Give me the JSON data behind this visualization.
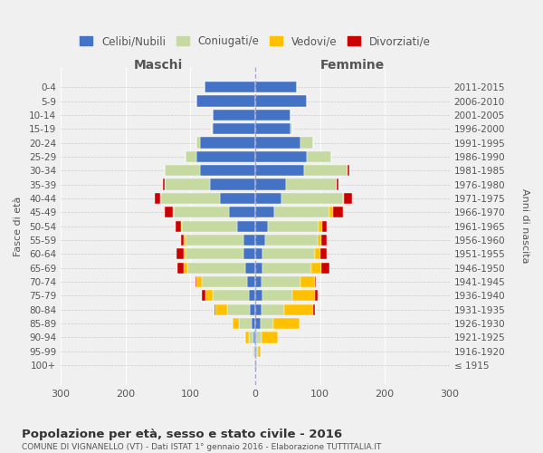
{
  "age_groups": [
    "100+",
    "95-99",
    "90-94",
    "85-89",
    "80-84",
    "75-79",
    "70-74",
    "65-69",
    "60-64",
    "55-59",
    "50-54",
    "45-49",
    "40-44",
    "35-39",
    "30-34",
    "25-29",
    "20-24",
    "15-19",
    "10-14",
    "5-9",
    "0-4"
  ],
  "birth_years": [
    "≤ 1915",
    "1916-1920",
    "1921-1925",
    "1926-1930",
    "1931-1935",
    "1936-1940",
    "1941-1945",
    "1946-1950",
    "1951-1955",
    "1956-1960",
    "1961-1965",
    "1966-1970",
    "1971-1975",
    "1976-1980",
    "1981-1985",
    "1986-1990",
    "1991-1995",
    "1996-2000",
    "2001-2005",
    "2006-2010",
    "2011-2015"
  ],
  "male_celibe": [
    1,
    1,
    2,
    5,
    8,
    10,
    12,
    15,
    18,
    18,
    28,
    40,
    55,
    70,
    85,
    90,
    85,
    65,
    65,
    90,
    78
  ],
  "male_coniugato": [
    0,
    2,
    8,
    20,
    35,
    55,
    70,
    90,
    90,
    90,
    85,
    85,
    90,
    70,
    55,
    18,
    5,
    2,
    0,
    0,
    0
  ],
  "male_vedovo": [
    0,
    1,
    5,
    10,
    18,
    12,
    8,
    5,
    2,
    2,
    2,
    2,
    2,
    0,
    0,
    0,
    0,
    0,
    0,
    0,
    0
  ],
  "male_divorziato": [
    0,
    0,
    0,
    0,
    2,
    5,
    2,
    10,
    12,
    5,
    8,
    12,
    8,
    2,
    0,
    0,
    0,
    0,
    0,
    0,
    0
  ],
  "female_celibe": [
    1,
    2,
    2,
    8,
    10,
    12,
    10,
    12,
    12,
    15,
    20,
    30,
    40,
    48,
    75,
    80,
    70,
    55,
    55,
    80,
    65
  ],
  "female_coniugato": [
    0,
    2,
    8,
    20,
    35,
    45,
    60,
    75,
    80,
    82,
    78,
    85,
    95,
    78,
    68,
    38,
    20,
    2,
    0,
    0,
    0
  ],
  "female_vedovo": [
    2,
    5,
    25,
    40,
    45,
    35,
    22,
    15,
    8,
    5,
    5,
    5,
    2,
    0,
    0,
    0,
    0,
    0,
    0,
    0,
    0
  ],
  "female_divorziato": [
    0,
    0,
    0,
    0,
    2,
    5,
    2,
    12,
    10,
    8,
    8,
    15,
    12,
    2,
    2,
    0,
    0,
    0,
    0,
    0,
    0
  ],
  "color_celibe": "#4472c4",
  "color_coniugato": "#c5d9a0",
  "color_vedovo": "#ffc000",
  "color_divorziato": "#cc0000",
  "color_background": "#f0f0f0",
  "color_grid": "#ffffff",
  "title": "Popolazione per età, sesso e stato civile - 2016",
  "subtitle": "COMUNE DI VIGNANELLO (VT) - Dati ISTAT 1° gennaio 2016 - Elaborazione TUTTITALIA.IT",
  "xlabel_left": "Maschi",
  "xlabel_right": "Femmine",
  "ylabel_left": "Fasce di età",
  "ylabel_right": "Anni di nascita",
  "xlim": 300
}
